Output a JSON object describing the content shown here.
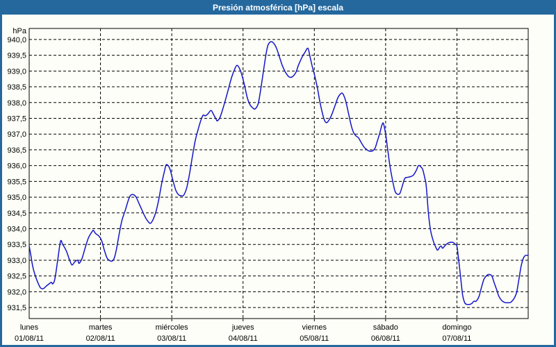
{
  "window": {
    "title": "Presión atmosférica [hPa] escala"
  },
  "colors": {
    "frame": "#24689E",
    "title_text": "#FFFFFF",
    "background": "#FCFEF7",
    "gridline": "#000000",
    "line": "#1414C8",
    "text": "#000000"
  },
  "chart_data": {
    "type": "line",
    "title": "Presión atmosférica [hPa] escala",
    "y_unit": "hPa",
    "ylabel": "hPa",
    "xlabel": "",
    "grid": "dashed",
    "legend": "none",
    "ylim": [
      931.15,
      940.35
    ],
    "xlim_days": [
      0,
      7
    ],
    "y_ticks": [
      {
        "value": 940.0,
        "label": "940,0"
      },
      {
        "value": 939.5,
        "label": "939,5"
      },
      {
        "value": 939.0,
        "label": "939,0"
      },
      {
        "value": 938.5,
        "label": "938,5"
      },
      {
        "value": 938.0,
        "label": "938,0"
      },
      {
        "value": 937.5,
        "label": "937,5"
      },
      {
        "value": 937.0,
        "label": "937,0"
      },
      {
        "value": 936.5,
        "label": "936,5"
      },
      {
        "value": 936.0,
        "label": "936,0"
      },
      {
        "value": 935.5,
        "label": "935,5"
      },
      {
        "value": 935.0,
        "label": "935,0"
      },
      {
        "value": 934.5,
        "label": "934,5"
      },
      {
        "value": 934.0,
        "label": "934,0"
      },
      {
        "value": 933.5,
        "label": "933,5"
      },
      {
        "value": 933.0,
        "label": "933,0"
      },
      {
        "value": 932.5,
        "label": "932,5"
      },
      {
        "value": 932.0,
        "label": "932,0"
      },
      {
        "value": 931.5,
        "label": "931,5"
      }
    ],
    "x_ticks": [
      {
        "t": 0,
        "day": "lunes",
        "date": "01/08/11"
      },
      {
        "t": 1,
        "day": "martes",
        "date": "02/08/11"
      },
      {
        "t": 2,
        "day": "miércoles",
        "date": "03/08/11"
      },
      {
        "t": 3,
        "day": "jueves",
        "date": "04/08/11"
      },
      {
        "t": 4,
        "day": "viernes",
        "date": "05/08/11"
      },
      {
        "t": 5,
        "day": "sábado",
        "date": "06/08/11"
      },
      {
        "t": 6,
        "day": "domingo",
        "date": "07/08/11"
      }
    ],
    "series": [
      {
        "name": "Presión atmosférica",
        "points": [
          [
            0,
            933.45
          ],
          [
            0.02,
            933.2
          ],
          [
            0.05,
            932.8
          ],
          [
            0.08,
            932.55
          ],
          [
            0.12,
            932.3
          ],
          [
            0.16,
            932.12
          ],
          [
            0.2,
            932.1
          ],
          [
            0.24,
            932.18
          ],
          [
            0.28,
            932.25
          ],
          [
            0.31,
            932.3
          ],
          [
            0.33,
            932.25
          ],
          [
            0.36,
            932.4
          ],
          [
            0.4,
            933
          ],
          [
            0.44,
            933.6
          ],
          [
            0.47,
            933.5
          ],
          [
            0.52,
            933.3
          ],
          [
            0.56,
            933.05
          ],
          [
            0.6,
            932.85
          ],
          [
            0.64,
            932.95
          ],
          [
            0.68,
            933
          ],
          [
            0.7,
            932.9
          ],
          [
            0.74,
            933.05
          ],
          [
            0.78,
            933.35
          ],
          [
            0.83,
            933.7
          ],
          [
            0.88,
            933.9
          ],
          [
            0.9,
            933.95
          ],
          [
            0.93,
            933.85
          ],
          [
            0.98,
            933.76
          ],
          [
            1.02,
            933.6
          ],
          [
            1.05,
            933.35
          ],
          [
            1.09,
            933.08
          ],
          [
            1.12,
            933
          ],
          [
            1.16,
            932.97
          ],
          [
            1.19,
            933.05
          ],
          [
            1.22,
            933.3
          ],
          [
            1.26,
            933.8
          ],
          [
            1.3,
            934.25
          ],
          [
            1.35,
            934.6
          ],
          [
            1.39,
            934.9
          ],
          [
            1.42,
            935.05
          ],
          [
            1.46,
            935.08
          ],
          [
            1.5,
            935
          ],
          [
            1.54,
            934.8
          ],
          [
            1.58,
            934.6
          ],
          [
            1.62,
            934.4
          ],
          [
            1.66,
            934.25
          ],
          [
            1.7,
            934.17
          ],
          [
            1.74,
            934.3
          ],
          [
            1.78,
            934.55
          ],
          [
            1.82,
            934.95
          ],
          [
            1.86,
            935.45
          ],
          [
            1.9,
            935.85
          ],
          [
            1.92,
            936.02
          ],
          [
            1.95,
            936
          ],
          [
            1.98,
            935.85
          ],
          [
            2.02,
            935.5
          ],
          [
            2.06,
            935.2
          ],
          [
            2.1,
            935.07
          ],
          [
            2.14,
            935.04
          ],
          [
            2.17,
            935.07
          ],
          [
            2.21,
            935.3
          ],
          [
            2.25,
            935.75
          ],
          [
            2.29,
            936.3
          ],
          [
            2.33,
            936.8
          ],
          [
            2.37,
            937.15
          ],
          [
            2.41,
            937.45
          ],
          [
            2.44,
            937.6
          ],
          [
            2.47,
            937.58
          ],
          [
            2.51,
            937.65
          ],
          [
            2.55,
            937.75
          ],
          [
            2.58,
            937.65
          ],
          [
            2.62,
            937.48
          ],
          [
            2.64,
            937.42
          ],
          [
            2.68,
            937.55
          ],
          [
            2.73,
            937.9
          ],
          [
            2.78,
            938.3
          ],
          [
            2.84,
            938.8
          ],
          [
            2.89,
            939.1
          ],
          [
            2.92,
            939.18
          ],
          [
            2.95,
            939.08
          ],
          [
            2.98,
            938.9
          ],
          [
            3.02,
            938.55
          ],
          [
            3.06,
            938.15
          ],
          [
            3.1,
            937.92
          ],
          [
            3.14,
            937.82
          ],
          [
            3.17,
            937.8
          ],
          [
            3.21,
            937.95
          ],
          [
            3.24,
            938.3
          ],
          [
            3.28,
            938.9
          ],
          [
            3.32,
            939.5
          ],
          [
            3.35,
            939.82
          ],
          [
            3.39,
            939.93
          ],
          [
            3.43,
            939.88
          ],
          [
            3.47,
            939.72
          ],
          [
            3.51,
            939.45
          ],
          [
            3.55,
            939.18
          ],
          [
            3.59,
            938.98
          ],
          [
            3.63,
            938.85
          ],
          [
            3.66,
            938.8
          ],
          [
            3.7,
            938.83
          ],
          [
            3.74,
            938.95
          ],
          [
            3.78,
            939.2
          ],
          [
            3.83,
            939.45
          ],
          [
            3.87,
            939.6
          ],
          [
            3.91,
            939.72
          ],
          [
            3.94,
            939.45
          ],
          [
            3.97,
            939.15
          ],
          [
            4,
            938.9
          ],
          [
            4.04,
            938.5
          ],
          [
            4.08,
            938
          ],
          [
            4.12,
            937.6
          ],
          [
            4.15,
            937.4
          ],
          [
            4.18,
            937.37
          ],
          [
            4.22,
            937.5
          ],
          [
            4.25,
            937.65
          ],
          [
            4.29,
            937.9
          ],
          [
            4.33,
            938.15
          ],
          [
            4.37,
            938.28
          ],
          [
            4.4,
            938.28
          ],
          [
            4.44,
            938.05
          ],
          [
            4.48,
            937.65
          ],
          [
            4.52,
            937.25
          ],
          [
            4.55,
            937.05
          ],
          [
            4.58,
            936.95
          ],
          [
            4.62,
            936.88
          ],
          [
            4.66,
            936.72
          ],
          [
            4.7,
            936.58
          ],
          [
            4.74,
            936.5
          ],
          [
            4.77,
            936.46
          ],
          [
            4.81,
            936.46
          ],
          [
            4.85,
            936.55
          ],
          [
            4.88,
            936.75
          ],
          [
            4.92,
            937.05
          ],
          [
            4.95,
            937.3
          ],
          [
            4.97,
            937.33
          ],
          [
            5,
            937
          ],
          [
            5.03,
            936.5
          ],
          [
            5.06,
            936
          ],
          [
            5.1,
            935.5
          ],
          [
            5.13,
            935.2
          ],
          [
            5.16,
            935.1
          ],
          [
            5.2,
            935.12
          ],
          [
            5.24,
            935.4
          ],
          [
            5.27,
            935.6
          ],
          [
            5.31,
            935.63
          ],
          [
            5.35,
            935.65
          ],
          [
            5.39,
            935.7
          ],
          [
            5.43,
            935.85
          ],
          [
            5.46,
            936
          ],
          [
            5.49,
            935.97
          ],
          [
            5.52,
            935.88
          ],
          [
            5.55,
            935.6
          ],
          [
            5.57,
            935.35
          ],
          [
            5.6,
            934.5
          ],
          [
            5.63,
            933.95
          ],
          [
            5.67,
            933.6
          ],
          [
            5.71,
            933.38
          ],
          [
            5.73,
            933.32
          ],
          [
            5.76,
            933.42
          ],
          [
            5.78,
            933.45
          ],
          [
            5.8,
            933.38
          ],
          [
            5.84,
            933.48
          ],
          [
            5.88,
            933.55
          ],
          [
            5.92,
            933.57
          ],
          [
            5.95,
            933.56
          ],
          [
            5.98,
            933.5
          ],
          [
            6,
            933.45
          ],
          [
            6.02,
            933.1
          ],
          [
            6.05,
            932.5
          ],
          [
            6.08,
            931.9
          ],
          [
            6.11,
            931.65
          ],
          [
            6.14,
            931.6
          ],
          [
            6.18,
            931.6
          ],
          [
            6.21,
            931.63
          ],
          [
            6.24,
            931.7
          ],
          [
            6.27,
            931.7
          ],
          [
            6.31,
            931.85
          ],
          [
            6.34,
            932.1
          ],
          [
            6.38,
            932.4
          ],
          [
            6.42,
            932.52
          ],
          [
            6.45,
            932.55
          ],
          [
            6.49,
            932.5
          ],
          [
            6.52,
            932.3
          ],
          [
            6.56,
            932.05
          ],
          [
            6.59,
            931.85
          ],
          [
            6.63,
            931.72
          ],
          [
            6.67,
            931.66
          ],
          [
            6.71,
            931.65
          ],
          [
            6.75,
            931.66
          ],
          [
            6.78,
            931.72
          ],
          [
            6.81,
            931.82
          ],
          [
            6.84,
            932
          ],
          [
            6.87,
            932.4
          ],
          [
            6.9,
            932.8
          ],
          [
            6.93,
            933.05
          ],
          [
            6.96,
            933.15
          ],
          [
            7,
            933.15
          ]
        ]
      }
    ]
  }
}
